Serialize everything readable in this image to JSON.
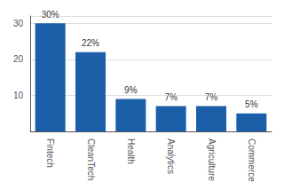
{
  "chart_data": {
    "type": "bar",
    "categories": [
      "Fintech",
      "CleanTech",
      "Health",
      "Analytics",
      "Agriculture",
      "Commerce"
    ],
    "values": [
      30,
      22,
      9,
      7,
      7,
      5
    ],
    "value_labels": [
      "30%",
      "22%",
      "9%",
      "7%",
      "7%",
      "5%"
    ],
    "data_labels": true,
    "color": "#1a5fa8",
    "ylim": [
      0,
      32
    ],
    "yticks": [
      10,
      20,
      30
    ],
    "grid": true
  }
}
